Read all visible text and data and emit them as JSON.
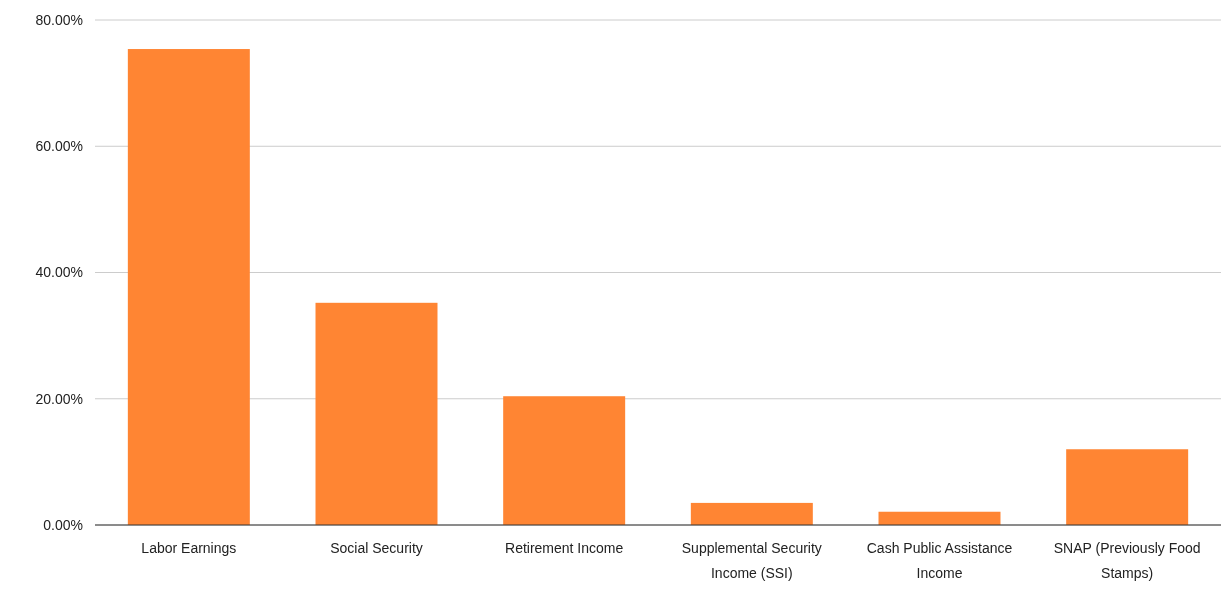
{
  "chart_data": {
    "type": "bar",
    "categories": [
      "Labor Earnings",
      "Social Security",
      "Retirement Income",
      "Supplemental Security Income (SSI)",
      "Cash Public Assistance Income",
      "SNAP (Previously Food Stamps)"
    ],
    "values": [
      75.4,
      35.2,
      20.4,
      3.5,
      2.1,
      12.0
    ],
    "color": "#ff8533",
    "ylim": [
      0,
      80
    ],
    "yticks": [
      {
        "value": 0,
        "label": "0.00%"
      },
      {
        "value": 20,
        "label": "20.00%"
      },
      {
        "value": 40,
        "label": "40.00%"
      },
      {
        "value": 60,
        "label": "60.00%"
      },
      {
        "value": 80,
        "label": "80.00%"
      }
    ],
    "grid": "y"
  }
}
